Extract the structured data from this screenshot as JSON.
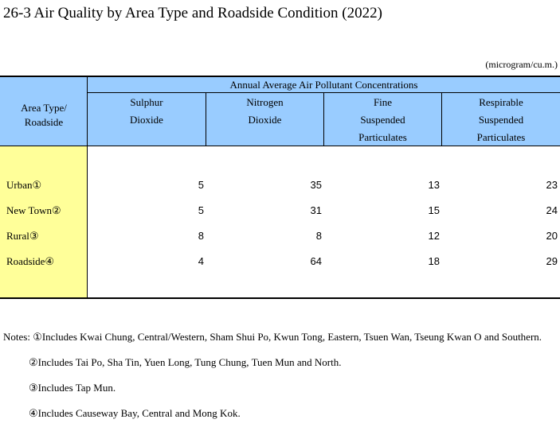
{
  "title": "26-3  Air Quality by Area Type and Roadside Condition (2022)",
  "unit": "(microgram/cu.m.)",
  "table": {
    "area_header_line1": "Area Type/",
    "area_header_line2": "Roadside",
    "group_header": "Annual Average Air Pollutant Concentrations",
    "columns": [
      {
        "line1": "Sulphur",
        "line2": "Dioxide",
        "line3": ""
      },
      {
        "line1": "Nitrogen",
        "line2": "Dioxide",
        "line3": ""
      },
      {
        "line1": "Fine",
        "line2": "Suspended",
        "line3": "Particulates"
      },
      {
        "line1": "Respirable",
        "line2": "Suspended",
        "line3": "Particulates"
      }
    ],
    "rows": [
      {
        "name": "Urban①",
        "values": [
          "5",
          "35",
          "13",
          "23"
        ]
      },
      {
        "name": "New Town②",
        "values": [
          "5",
          "31",
          "15",
          "24"
        ]
      },
      {
        "name": "Rural③",
        "values": [
          "8",
          "8",
          "12",
          "20"
        ]
      },
      {
        "name": "Roadside④",
        "values": [
          "4",
          "64",
          "18",
          "29"
        ]
      }
    ]
  },
  "notes": {
    "prefix": "Notes: ",
    "items": [
      "①Includes Kwai Chung, Central/Western, Sham Shui Po, Kwun Tong, Eastern, Tsuen Wan, Tseung Kwan O and Southern.",
      "②Includes Tai Po, Sha Tin, Yuen Long, Tung Chung, Tuen Mun and North.",
      "③Includes Tap Mun.",
      "④Includes Causeway Bay, Central and Mong Kok."
    ]
  }
}
